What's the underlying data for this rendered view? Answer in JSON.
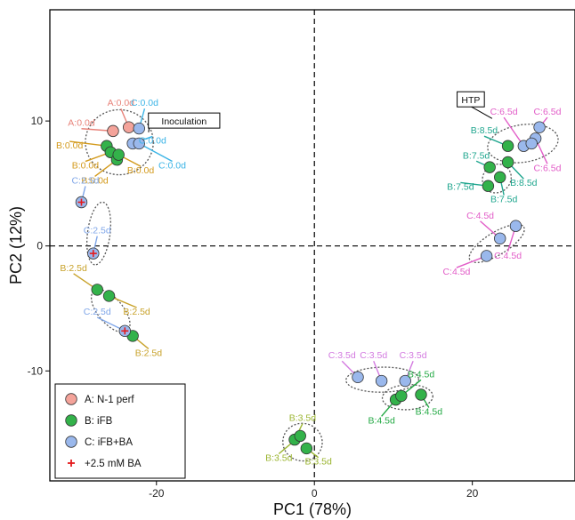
{
  "chart_data": {
    "type": "scatter",
    "xlabel": "PC1 (78%)",
    "ylabel": "PC2 (12%)",
    "xlim": [
      -33.5,
      33
    ],
    "ylim": [
      -18.8,
      18.9
    ],
    "xticks": [
      -20,
      0,
      20
    ],
    "yticks": [
      -10,
      0,
      10
    ],
    "xtick_labels": [
      "-20",
      "0",
      "20"
    ],
    "ytick_labels": [
      "-10",
      "0",
      "10"
    ],
    "grid": false,
    "reference_lines": [
      {
        "axis": "x",
        "value": 0
      },
      {
        "axis": "y",
        "value": 0
      }
    ],
    "legend_position": "bottom-left",
    "legend": [
      {
        "label": "A: N-1 perf",
        "marker": "circle",
        "color": "#F4A39A"
      },
      {
        "label": "B: iFB",
        "marker": "circle",
        "color": "#33B24A"
      },
      {
        "label": "C: iFB+BA",
        "marker": "circle",
        "color": "#9AB8EC"
      },
      {
        "label": "+2.5 mM BA",
        "marker": "plus",
        "color": "#E41A1C"
      }
    ],
    "series": [
      {
        "name": "A: N-1 perf",
        "color": "#F4A39A",
        "label_color": "#E8837A",
        "points": [
          {
            "x": -25.5,
            "y": 9.2,
            "label": "A:0.0d",
            "lx": -29.5,
            "ly": 9.6
          },
          {
            "x": -23.5,
            "y": 9.5,
            "label": "A:0.0d",
            "lx": -24.5,
            "ly": 11.2
          }
        ]
      },
      {
        "name": "B: iFB",
        "color": "#33B24A",
        "points": [
          {
            "x": -26.3,
            "y": 8.0,
            "label": "B:0.0d",
            "lx": -31.0,
            "ly": 7.8,
            "label_color": "#D39A1C"
          },
          {
            "x": -25.8,
            "y": 7.5,
            "label": "B:0.0d",
            "lx": -29.0,
            "ly": 6.2,
            "label_color": "#D39A1C"
          },
          {
            "x": -25.0,
            "y": 6.9,
            "label": "B:0.0d",
            "lx": -27.8,
            "ly": 5.0,
            "label_color": "#D39A1C"
          },
          {
            "x": -24.8,
            "y": 7.3,
            "label": "B:0.0d",
            "lx": -22.0,
            "ly": 5.8,
            "label_color": "#D39A1C"
          },
          {
            "x": -27.5,
            "y": -3.5,
            "label": "B:2.5d",
            "lx": -30.5,
            "ly": -2.0,
            "label_color": "#C8A22A"
          },
          {
            "x": -26.0,
            "y": -4.0,
            "label": "B:2.5d",
            "lx": -22.5,
            "ly": -5.5,
            "label_color": "#C8A22A"
          },
          {
            "x": -23.0,
            "y": -7.2,
            "label": "B:2.5d",
            "lx": -21.0,
            "ly": -8.8,
            "label_color": "#C8A22A"
          },
          {
            "x": -2.5,
            "y": -15.5,
            "label": "B:3.5d",
            "lx": -1.5,
            "ly": -14.0,
            "label_color": "#9BB531"
          },
          {
            "x": -1.8,
            "y": -15.2,
            "label": "B:3.5d",
            "lx": -4.5,
            "ly": -17.2,
            "label_color": "#9BB531"
          },
          {
            "x": -1.0,
            "y": -16.2,
            "label": "B:3.5d",
            "lx": 0.5,
            "ly": -17.5,
            "label_color": "#9BB531"
          },
          {
            "x": 10.3,
            "y": -12.3,
            "label": "B:4.5d",
            "lx": 8.5,
            "ly": -14.2,
            "label_color": "#23A944"
          },
          {
            "x": 11.0,
            "y": -12.0,
            "label": "B:4.5d",
            "lx": 13.5,
            "ly": -10.5,
            "label_color": "#23A944"
          },
          {
            "x": 13.5,
            "y": -11.9,
            "label": "B:4.5d",
            "lx": 14.5,
            "ly": -13.5,
            "label_color": "#23A944"
          },
          {
            "x": 22.2,
            "y": 6.3,
            "label": "B:7.5d",
            "lx": 20.5,
            "ly": 7.0,
            "label_color": "#1FA68E"
          },
          {
            "x": 23.5,
            "y": 5.5,
            "label": "B:7.5d",
            "lx": 24.0,
            "ly": 3.5,
            "label_color": "#1FA68E"
          },
          {
            "x": 22.0,
            "y": 4.8,
            "label": "B:7.5d",
            "lx": 18.5,
            "ly": 4.5,
            "label_color": "#1FA68E"
          },
          {
            "x": 24.5,
            "y": 8.0,
            "label": "B:8.5d",
            "lx": 21.5,
            "ly": 9.0,
            "label_color": "#1FA68E"
          },
          {
            "x": 24.5,
            "y": 6.7,
            "label": "B:8.5d",
            "lx": 26.5,
            "ly": 4.8,
            "label_color": "#1FA68E"
          }
        ]
      },
      {
        "name": "C: iFB+BA",
        "color": "#9AB8EC",
        "label_color": "#3BB4E6",
        "points": [
          {
            "x": -22.2,
            "y": 9.4,
            "label": "C:0.0d",
            "lx": -21.5,
            "ly": 11.2
          },
          {
            "x": -23.0,
            "y": 8.2,
            "label": "C:0.0d",
            "lx": -20.5,
            "ly": 8.2
          },
          {
            "x": -22.2,
            "y": 8.2,
            "label": "C:0.0d",
            "lx": -18.0,
            "ly": 6.2
          },
          {
            "x": -29.5,
            "y": 3.5,
            "label": "C:2.5d",
            "lx": -29.0,
            "ly": 5.0,
            "ba": true,
            "label_color": "#7FA6E8"
          },
          {
            "x": -28.0,
            "y": -0.6,
            "label": "C:2.5d",
            "lx": -27.5,
            "ly": 1.0,
            "ba": true,
            "label_color": "#7FA6E8"
          },
          {
            "x": -24.0,
            "y": -6.8,
            "label": "C:2.5d",
            "lx": -27.5,
            "ly": -5.5,
            "ba": true,
            "label_color": "#7FA6E8"
          },
          {
            "x": 5.5,
            "y": -10.5,
            "label": "C:3.5d",
            "lx": 3.5,
            "ly": -9.0,
            "label_color": "#D37AE0"
          },
          {
            "x": 8.5,
            "y": -10.8,
            "label": "C:3.5d",
            "lx": 7.5,
            "ly": -9.0,
            "label_color": "#D37AE0"
          },
          {
            "x": 11.5,
            "y": -10.8,
            "label": "C:3.5d",
            "lx": 12.5,
            "ly": -9.0,
            "label_color": "#D37AE0"
          },
          {
            "x": 23.5,
            "y": 0.6,
            "label": "C:4.5d",
            "lx": 21.0,
            "ly": 2.2,
            "label_color": "#E25DC8"
          },
          {
            "x": 21.8,
            "y": -0.8,
            "label": "C:4.5d",
            "lx": 18.0,
            "ly": -2.3,
            "label_color": "#E25DC8"
          },
          {
            "x": 25.5,
            "y": 1.6,
            "label": "C:4.5d",
            "lx": 24.5,
            "ly": -1.0,
            "label_color": "#E25DC8"
          },
          {
            "x": 26.5,
            "y": 8.0,
            "label": "C:6.5d",
            "lx": 24.0,
            "ly": 10.5,
            "label_color": "#E25DC8"
          },
          {
            "x": 28.5,
            "y": 9.5,
            "label": "C:6.5d",
            "lx": 29.5,
            "ly": 10.5,
            "label_color": "#E25DC8"
          },
          {
            "x": 28.0,
            "y": 8.6,
            "label": "C:6.5d",
            "lx": 29.5,
            "ly": 6.0,
            "label_color": "#E25DC8"
          },
          {
            "x": 27.5,
            "y": 8.2,
            "label": "C:6.5d",
            "lx": 26.0,
            "ly": 5.0,
            "label_color": "#E25DC8",
            "hidden_label": true
          }
        ]
      }
    ],
    "ellipses": [
      {
        "cx": -24.7,
        "cy": 8.3,
        "rx": 4.3,
        "ry": 2.6,
        "angle": 0
      },
      {
        "cx": -27.3,
        "cy": 1.0,
        "rx": 4.0,
        "ry": 0.9,
        "angle": -1.7
      },
      {
        "cx": -25.8,
        "cy": -5.2,
        "rx": 3.3,
        "ry": 1.0,
        "angle": -0.87
      },
      {
        "cx": -1.5,
        "cy": -15.7,
        "rx": 2.5,
        "ry": 1.5,
        "angle": -0.2
      },
      {
        "cx": 8.6,
        "cy": -10.7,
        "rx": 4.6,
        "ry": 1.0,
        "angle": 0.02
      },
      {
        "cx": 11.8,
        "cy": -12.1,
        "rx": 3.2,
        "ry": 1.0,
        "angle": 0.05
      },
      {
        "cx": 23.1,
        "cy": 5.4,
        "rx": 1.9,
        "ry": 1.1,
        "angle": 0.8
      },
      {
        "cx": 23.1,
        "cy": 0.2,
        "rx": 4.0,
        "ry": 0.9,
        "angle": 0.55
      },
      {
        "cx": 26.4,
        "cy": 8.2,
        "rx": 4.5,
        "ry": 1.5,
        "angle": 0.15
      }
    ],
    "annotations": [
      {
        "text": "Inoculation",
        "x": -16.5,
        "y": 10.0,
        "ax": -21.0,
        "ay": 9.1
      },
      {
        "text": "HTP",
        "x": 19.8,
        "y": 11.7,
        "ax": 22.5,
        "ay": 10.2
      }
    ]
  }
}
